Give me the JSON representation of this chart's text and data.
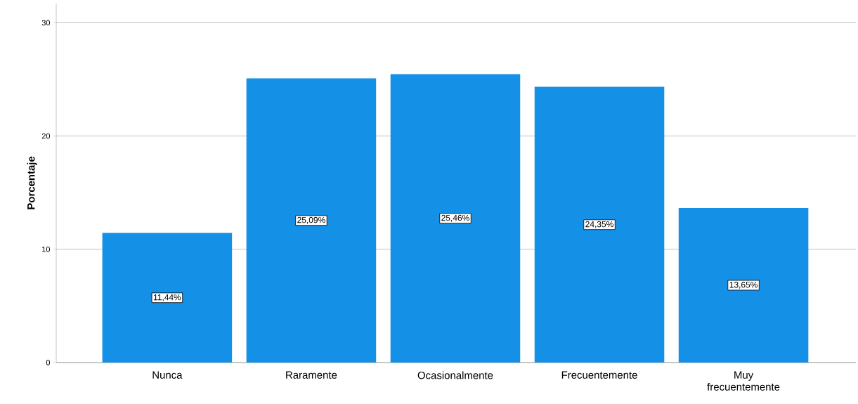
{
  "chart_data": {
    "type": "bar",
    "ylabel": "Porcentaje",
    "categories": [
      "Nunca",
      "Raramente",
      "Ocasionalmente",
      "Frecuentemente",
      "Muy frecuentemente"
    ],
    "values": [
      11.44,
      25.09,
      25.46,
      24.35,
      13.65
    ],
    "value_labels": [
      "11,44%",
      "25,09%",
      "25,46%",
      "24,35%",
      "13,65%"
    ],
    "color": "#1490e6",
    "ylim": [
      0,
      31.7
    ],
    "yticks": [
      0,
      10,
      20,
      30
    ],
    "grid": "y"
  }
}
